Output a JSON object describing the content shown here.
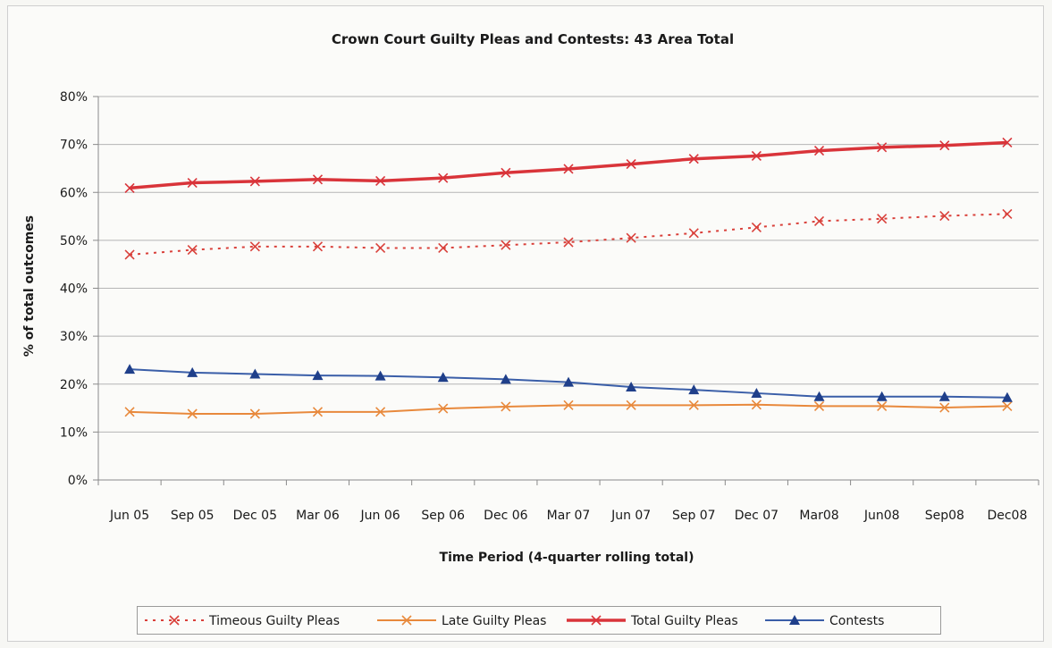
{
  "chart_data": {
    "type": "line",
    "title": "Crown Court Guilty Pleas and Contests: 43 Area Total",
    "xlabel": "Time Period (4-quarter rolling total)",
    "ylabel": "% of total outcomes",
    "ylim": [
      0,
      80
    ],
    "yticks": [
      "0%",
      "10%",
      "20%",
      "30%",
      "40%",
      "50%",
      "60%",
      "70%",
      "80%"
    ],
    "categories": [
      "Jun 05",
      "Sep 05",
      "Dec 05",
      "Mar 06",
      "Jun 06",
      "Sep 06",
      "Dec 06",
      "Mar 07",
      "Jun 07",
      "Sep 07",
      "Dec 07",
      "Mar08",
      "Jun08",
      "Sep08",
      "Dec08"
    ],
    "grid": true,
    "legend_position": "bottom",
    "series": [
      {
        "name": "Timeous Guilty Pleas",
        "color": "#d9403a",
        "style": "dotted",
        "marker": "x",
        "values": [
          47,
          48,
          48.7,
          48.7,
          48.4,
          48.4,
          49,
          49.6,
          50.5,
          51.5,
          52.7,
          54,
          54.5,
          55.1,
          55.5
        ]
      },
      {
        "name": "Late Guilty Pleas",
        "color": "#e8893c",
        "style": "solid",
        "marker": "x",
        "values": [
          14.2,
          13.8,
          13.8,
          14.2,
          14.2,
          14.9,
          15.3,
          15.6,
          15.6,
          15.6,
          15.7,
          15.4,
          15.4,
          15.1,
          15.4
        ]
      },
      {
        "name": "Total Guilty Pleas",
        "color": "#d9343a",
        "style": "bold",
        "marker": "x",
        "values": [
          60.9,
          62,
          62.3,
          62.7,
          62.4,
          63,
          64.1,
          64.9,
          65.9,
          67,
          67.6,
          68.7,
          69.4,
          69.8,
          70.4
        ]
      },
      {
        "name": "Contests",
        "color": "#3a5ea8",
        "style": "solid",
        "marker": "triangle",
        "values": [
          23.1,
          22.4,
          22.1,
          21.8,
          21.7,
          21.4,
          21,
          20.4,
          19.4,
          18.8,
          18.1,
          17.4,
          17.4,
          17.4,
          17.2
        ]
      }
    ]
  }
}
